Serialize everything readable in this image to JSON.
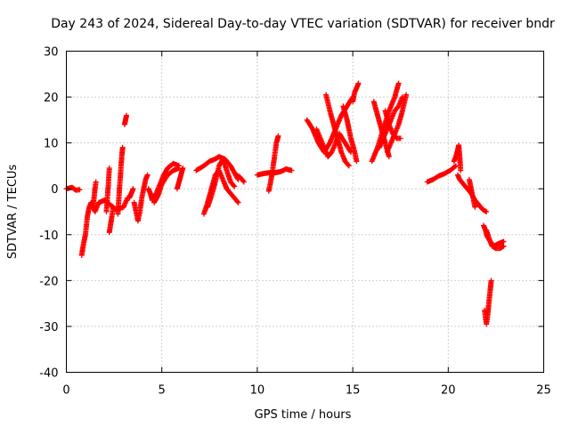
{
  "chart_data": {
    "type": "scatter",
    "title": "Day 243 of 2024, Sidereal Day-to-day VTEC variation (SDTVAR) for receiver bndr",
    "xlabel": "GPS time / hours",
    "ylabel": "SDTVAR / TECUs",
    "xlim": [
      0,
      25
    ],
    "ylim": [
      -40,
      30
    ],
    "xticks": [
      "0",
      "5",
      "10",
      "15",
      "20",
      "25"
    ],
    "yticks": [
      "-40",
      "-30",
      "-20",
      "-10",
      "0",
      "10",
      "20",
      "30"
    ],
    "grid": true,
    "marker": "+",
    "color": "#ff0000",
    "series": [
      {
        "name": "SDTVAR",
        "segments": [
          [
            [
              0.0,
              0.0
            ],
            [
              0.3,
              0.3
            ],
            [
              0.5,
              -0.3
            ],
            [
              0.7,
              -0.2
            ]
          ],
          [
            [
              0.8,
              -14.5
            ],
            [
              0.9,
              -12
            ],
            [
              1.0,
              -10
            ],
            [
              1.1,
              -6
            ],
            [
              1.2,
              -4
            ],
            [
              1.3,
              -3
            ],
            [
              1.5,
              -5
            ],
            [
              1.7,
              -3
            ],
            [
              2.0,
              -2.5
            ],
            [
              2.3,
              -3.5
            ],
            [
              2.6,
              -4.5
            ],
            [
              3.0,
              -4
            ],
            [
              3.2,
              -2
            ]
          ],
          [
            [
              1.4,
              -4
            ],
            [
              1.45,
              -2
            ],
            [
              1.5,
              0
            ],
            [
              1.55,
              1.5
            ]
          ],
          [
            [
              2.1,
              -5
            ],
            [
              2.15,
              -2
            ],
            [
              2.2,
              1
            ],
            [
              2.25,
              4.5
            ]
          ],
          [
            [
              2.25,
              -9.5
            ],
            [
              2.35,
              -7
            ],
            [
              2.45,
              -4
            ]
          ],
          [
            [
              2.7,
              -5.5
            ],
            [
              2.75,
              -2
            ],
            [
              2.8,
              1
            ],
            [
              2.85,
              4
            ],
            [
              2.9,
              7
            ],
            [
              2.95,
              9
            ]
          ],
          [
            [
              3.05,
              14
            ],
            [
              3.1,
              15
            ],
            [
              3.15,
              16
            ]
          ],
          [
            [
              3.3,
              -2
            ],
            [
              3.4,
              -1
            ],
            [
              3.5,
              0
            ]
          ],
          [
            [
              3.55,
              -3
            ],
            [
              3.65,
              -5
            ],
            [
              3.75,
              -7
            ],
            [
              3.85,
              -5
            ],
            [
              3.95,
              -2
            ],
            [
              4.05,
              0
            ],
            [
              4.15,
              2
            ],
            [
              4.25,
              3
            ]
          ],
          [
            [
              4.3,
              0
            ],
            [
              4.4,
              -1
            ],
            [
              4.5,
              -2.5
            ],
            [
              4.7,
              -1
            ],
            [
              4.9,
              1
            ],
            [
              5.1,
              3
            ],
            [
              5.3,
              4.5
            ],
            [
              5.6,
              5.5
            ],
            [
              5.9,
              5
            ]
          ],
          [
            [
              4.6,
              -3
            ],
            [
              4.8,
              -1.5
            ],
            [
              5.0,
              1
            ],
            [
              5.3,
              3
            ],
            [
              5.6,
              4
            ],
            [
              5.9,
              4.5
            ]
          ],
          [
            [
              5.8,
              0
            ],
            [
              5.9,
              1.5
            ],
            [
              6.0,
              3
            ],
            [
              6.1,
              4.5
            ]
          ],
          [
            [
              6.8,
              4
            ],
            [
              7.2,
              5
            ],
            [
              7.5,
              6
            ],
            [
              7.8,
              6.5
            ],
            [
              8.0,
              7
            ],
            [
              8.3,
              6.5
            ],
            [
              8.6,
              5
            ],
            [
              8.8,
              3.5
            ],
            [
              9.0,
              2
            ]
          ],
          [
            [
              7.2,
              -5.5
            ],
            [
              7.4,
              -3
            ],
            [
              7.6,
              0
            ],
            [
              7.8,
              3
            ],
            [
              8.0,
              4
            ],
            [
              8.2,
              2
            ],
            [
              8.4,
              0
            ],
            [
              8.6,
              -1
            ],
            [
              8.8,
              -2
            ],
            [
              9.0,
              -3
            ]
          ],
          [
            [
              7.4,
              -4
            ],
            [
              7.6,
              -1.5
            ],
            [
              7.8,
              1.5
            ],
            [
              8.0,
              5
            ],
            [
              8.2,
              6.5
            ],
            [
              8.4,
              4
            ],
            [
              8.6,
              1.5
            ],
            [
              8.8,
              0.5
            ]
          ],
          [
            [
              8.9,
              3
            ],
            [
              9.1,
              2.5
            ],
            [
              9.3,
              1.5
            ]
          ],
          [
            [
              10.0,
              3
            ],
            [
              10.3,
              3.3
            ],
            [
              10.6,
              3.5
            ],
            [
              10.9,
              3.5
            ],
            [
              11.2,
              3.7
            ],
            [
              11.5,
              4.3
            ],
            [
              11.8,
              4
            ]
          ],
          [
            [
              10.6,
              -0.5
            ],
            [
              10.7,
              1.5
            ],
            [
              10.8,
              4
            ],
            [
              10.9,
              7
            ],
            [
              11.0,
              10
            ],
            [
              11.1,
              11.5
            ]
          ],
          [
            [
              12.6,
              15
            ],
            [
              12.9,
              13
            ],
            [
              13.2,
              10
            ],
            [
              13.5,
              8
            ],
            [
              13.8,
              10
            ],
            [
              14.1,
              13
            ],
            [
              14.4,
              16
            ],
            [
              14.7,
              18
            ],
            [
              15.0,
              20
            ]
          ],
          [
            [
              13.1,
              13
            ],
            [
              13.3,
              11
            ],
            [
              13.5,
              9
            ],
            [
              13.7,
              7
            ],
            [
              13.9,
              8
            ],
            [
              14.1,
              10
            ],
            [
              14.3,
              12
            ],
            [
              14.6,
              10
            ],
            [
              14.9,
              8
            ]
          ],
          [
            [
              13.6,
              20.5
            ],
            [
              13.8,
              17
            ],
            [
              14.0,
              14
            ],
            [
              14.2,
              11
            ],
            [
              14.4,
              8
            ],
            [
              14.6,
              6
            ],
            [
              14.8,
              5
            ]
          ],
          [
            [
              14.5,
              18
            ],
            [
              14.7,
              15
            ],
            [
              14.9,
              11
            ],
            [
              15.1,
              8
            ],
            [
              15.2,
              6
            ]
          ],
          [
            [
              15.0,
              19
            ],
            [
              15.1,
              21
            ],
            [
              15.2,
              22
            ],
            [
              15.3,
              23
            ]
          ],
          [
            [
              16.0,
              6
            ],
            [
              16.3,
              9
            ],
            [
              16.6,
              13
            ],
            [
              16.9,
              17
            ],
            [
              17.2,
              20
            ],
            [
              17.4,
              23
            ]
          ],
          [
            [
              16.1,
              19
            ],
            [
              16.3,
              16
            ],
            [
              16.5,
              13
            ],
            [
              16.7,
              10
            ],
            [
              16.9,
              7
            ]
          ],
          [
            [
              16.4,
              9
            ],
            [
              16.6,
              11
            ],
            [
              16.8,
              13
            ],
            [
              17.0,
              15
            ],
            [
              17.2,
              17
            ],
            [
              17.4,
              18
            ],
            [
              17.6,
              20
            ]
          ],
          [
            [
              16.8,
              8
            ],
            [
              17.0,
              10
            ],
            [
              17.2,
              12
            ],
            [
              17.4,
              14
            ],
            [
              17.6,
              17
            ],
            [
              17.8,
              20.5
            ]
          ],
          [
            [
              16.7,
              17
            ],
            [
              16.9,
              14
            ],
            [
              17.1,
              12
            ],
            [
              17.3,
              11
            ],
            [
              17.5,
              11
            ]
          ],
          [
            [
              18.9,
              1.5
            ],
            [
              19.2,
              2
            ],
            [
              19.5,
              2.8
            ],
            [
              19.8,
              3.3
            ],
            [
              20.1,
              4
            ],
            [
              20.4,
              5
            ]
          ],
          [
            [
              20.3,
              6
            ],
            [
              20.4,
              7
            ],
            [
              20.5,
              8.5
            ],
            [
              20.55,
              9.5
            ],
            [
              20.6,
              7
            ],
            [
              20.65,
              4
            ]
          ],
          [
            [
              20.5,
              3
            ],
            [
              20.6,
              2
            ],
            [
              20.8,
              1
            ],
            [
              21.0,
              0
            ],
            [
              21.2,
              -1
            ],
            [
              21.4,
              -2.5
            ],
            [
              21.6,
              -3.5
            ],
            [
              21.8,
              -4.5
            ],
            [
              22.0,
              -5
            ]
          ],
          [
            [
              21.1,
              2
            ],
            [
              21.2,
              0
            ],
            [
              21.3,
              -2
            ],
            [
              21.4,
              -4
            ]
          ],
          [
            [
              21.85,
              -8
            ],
            [
              21.95,
              -9
            ],
            [
              22.05,
              -10.5
            ],
            [
              22.2,
              -11.5
            ],
            [
              22.4,
              -12.5
            ],
            [
              22.6,
              -12
            ],
            [
              22.9,
              -11.5
            ]
          ],
          [
            [
              22.0,
              -9
            ],
            [
              22.15,
              -11
            ],
            [
              22.3,
              -12.5
            ],
            [
              22.5,
              -13
            ],
            [
              22.7,
              -13
            ],
            [
              22.9,
              -12.5
            ]
          ],
          [
            [
              21.9,
              -26.5
            ],
            [
              21.95,
              -28
            ],
            [
              22.0,
              -29.5
            ],
            [
              22.05,
              -28
            ],
            [
              22.1,
              -26
            ],
            [
              22.15,
              -24
            ],
            [
              22.2,
              -22
            ],
            [
              22.25,
              -20
            ]
          ]
        ]
      }
    ]
  }
}
